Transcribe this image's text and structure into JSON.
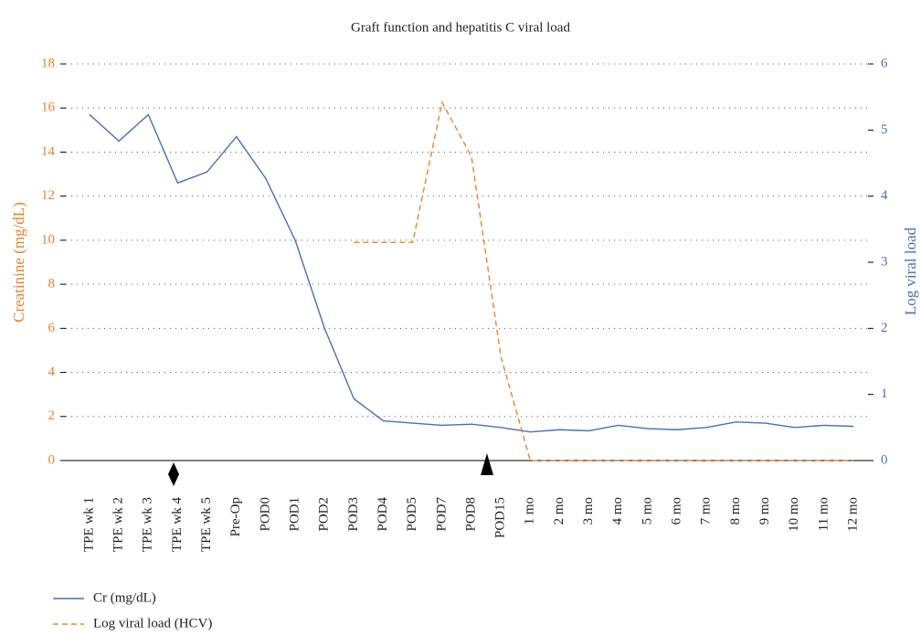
{
  "chart_data": {
    "type": "line",
    "title": "Graft function and hepatitis C viral load",
    "y_label": "Creatinine (mg/dL)",
    "y2_label": "Log viral load",
    "categories": [
      "TPE wk 1",
      "TPE wk 2",
      "TPE wk 3",
      "TPE wk 4",
      "TPE wk 5",
      "Pre-Op",
      "POD0",
      "POD1",
      "POD2",
      "POD3",
      "POD4",
      "POD5",
      "POD7",
      "POD8",
      "POD15",
      "1 mo",
      "2 mo",
      "3 mo",
      "4 mo",
      "5 mo",
      "6 mo",
      "7 mo",
      "8 mo",
      "9 mo",
      "10 mo",
      "11 mo",
      "12 mo"
    ],
    "series": [
      {
        "name": "Cr (mg/dL)",
        "color": "#4a6fb5",
        "linestyle": "solid",
        "axis": "y",
        "values": [
          15.7,
          14.5,
          15.7,
          12.6,
          13.1,
          14.7,
          12.8,
          10.0,
          6.0,
          2.8,
          1.8,
          1.7,
          1.6,
          1.65,
          1.5,
          1.3,
          1.4,
          1.35,
          1.6,
          1.45,
          1.4,
          1.5,
          1.75,
          1.7,
          1.5,
          1.6,
          1.55
        ]
      },
      {
        "name": "Log viral load (HCV)",
        "color": "#e8822a",
        "linestyle": "dashed",
        "axis": "y2",
        "values": [
          null,
          null,
          null,
          null,
          null,
          null,
          null,
          null,
          null,
          3.3,
          3.3,
          3.3,
          5.42,
          4.6,
          1.58,
          0,
          0,
          0,
          0,
          0,
          0,
          0,
          0,
          0,
          0,
          0,
          0
        ]
      }
    ],
    "ylim": [
      0,
      18
    ],
    "yticks": [
      0,
      2,
      4,
      6,
      8,
      10,
      12,
      14,
      16,
      18
    ],
    "y_color": "#e8822a",
    "y2lim": [
      0,
      6
    ],
    "y2ticks": [
      0,
      1,
      2,
      3,
      4,
      5,
      6
    ],
    "y2_color": "#4a6fb5",
    "grid": true
  }
}
